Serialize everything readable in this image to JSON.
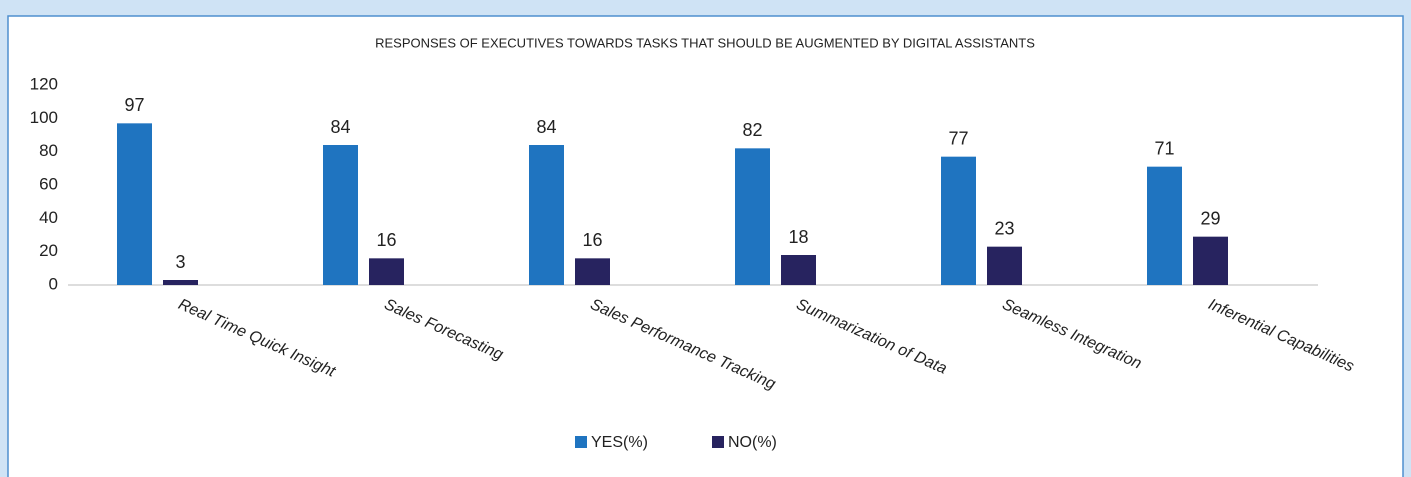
{
  "chart_data": {
    "type": "bar",
    "title": "RESPONSES OF EXECUTIVES TOWARDS TASKS THAT SHOULD BE AUGMENTED BY DIGITAL ASSISTANTS",
    "categories": [
      "Real Time Quick Insight",
      "Sales Forecasting",
      "Sales Performance Tracking",
      "Summarization of Data",
      "Seamless Integration",
      "Inferential Capabilities"
    ],
    "series": [
      {
        "name": "YES(%)",
        "color": "#1f74c0",
        "values": [
          97,
          84,
          84,
          82,
          77,
          71
        ]
      },
      {
        "name": "NO(%)",
        "color": "#27235f",
        "values": [
          3,
          16,
          16,
          18,
          23,
          29
        ]
      }
    ],
    "ylim": [
      0,
      120
    ],
    "yticks": [
      0,
      20,
      40,
      60,
      80,
      100,
      120
    ],
    "grid": false,
    "legend": "bottom"
  }
}
